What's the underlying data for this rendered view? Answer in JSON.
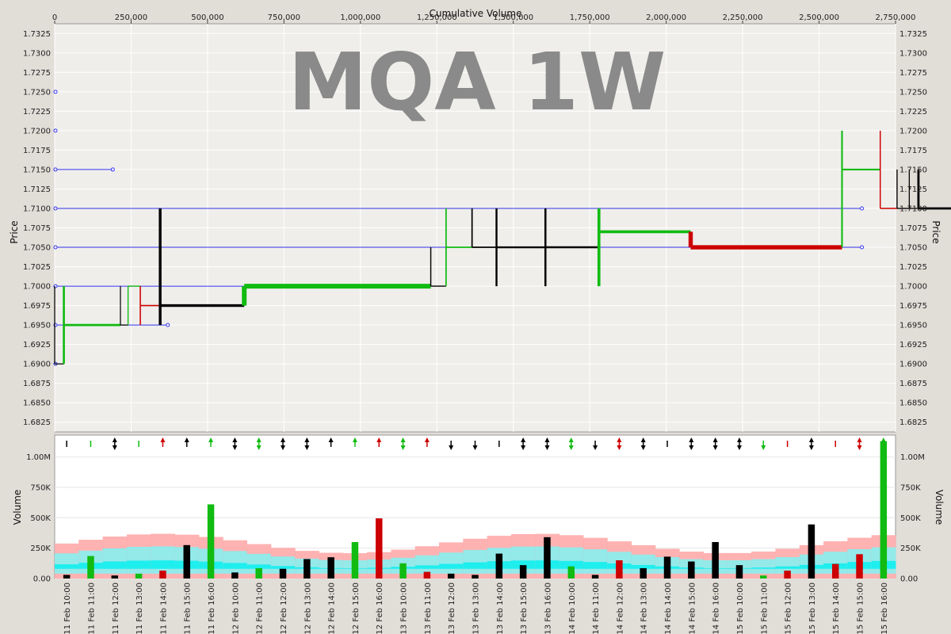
{
  "chart_data": {
    "type": "bar",
    "title": "",
    "watermark": "MQA 1W",
    "xlabel": "Cumulative Volume",
    "ylabel": "Price",
    "volume_label": "Volume",
    "x_range": [
      0,
      2750000
    ],
    "y_range": [
      1.68125,
      1.73375
    ],
    "vol_range": [
      0,
      1180000
    ],
    "x_ticks": [
      "0",
      "250,000",
      "500,000",
      "750,000",
      "1,000,000",
      "1,250,000",
      "1,500,000",
      "1,750,000",
      "2,000,000",
      "2,250,000",
      "2,500,000",
      "2,750,000"
    ],
    "y_ticks": [
      "1.6825",
      "1.6850",
      "1.6875",
      "1.6900",
      "1.6925",
      "1.6950",
      "1.6975",
      "1.7000",
      "1.7025",
      "1.7050",
      "1.7075",
      "1.7100",
      "1.7125",
      "1.7150",
      "1.7175",
      "1.7200",
      "1.7225",
      "1.7250",
      "1.7275",
      "1.7300",
      "1.7325"
    ],
    "vol_ticks": [
      "0.00",
      "250K",
      "500K",
      "750K",
      "1.00M"
    ],
    "colors": {
      "up": "#11bb11",
      "down": "#cc0000",
      "flat": "#000000",
      "level": "#3333ee",
      "band_outer": "#ffaaaa",
      "band_mid": "#88eeee",
      "band_inner": "#11eeee",
      "plot_bg": "#efeeeb",
      "grid": "#ffffff"
    },
    "levels": [
      {
        "price": 1.725,
        "x0": 0,
        "x1": 0
      },
      {
        "price": 1.72,
        "x0": 0,
        "x1": 0
      },
      {
        "price": 1.715,
        "x0": 0,
        "x1": 190000
      },
      {
        "price": 1.71,
        "x0": 0,
        "x1": 2640000
      },
      {
        "price": 1.705,
        "x0": 0,
        "x1": 2640000
      },
      {
        "price": 1.7,
        "x0": 0,
        "x1": 1020000
      },
      {
        "price": 1.695,
        "x0": 0,
        "x1": 370000
      },
      {
        "price": 1.69,
        "x0": 0,
        "x1": 0
      }
    ],
    "categories": [
      "11 Feb 10:00",
      "11 Feb 11:00",
      "11 Feb 12:00",
      "11 Feb 13:00",
      "11 Feb 14:00",
      "11 Feb 15:00",
      "11 Feb 16:00",
      "12 Feb 10:00",
      "12 Feb 11:00",
      "12 Feb 12:00",
      "12 Feb 13:00",
      "12 Feb 14:00",
      "12 Feb 15:00",
      "12 Feb 16:00",
      "13 Feb 10:00",
      "13 Feb 11:00",
      "13 Feb 12:00",
      "13 Feb 13:00",
      "13 Feb 14:00",
      "13 Feb 15:00",
      "13 Feb 16:00",
      "14 Feb 10:00",
      "14 Feb 11:00",
      "14 Feb 12:00",
      "14 Feb 13:00",
      "14 Feb 14:00",
      "14 Feb 15:00",
      "14 Feb 16:00",
      "15 Feb 10:00",
      "15 Feb 11:00",
      "15 Feb 12:00",
      "15 Feb 13:00",
      "15 Feb 14:00",
      "15 Feb 15:00",
      "15 Feb 16:00"
    ],
    "bars": [
      {
        "high": 1.7,
        "low": 1.69,
        "open": 1.69,
        "close": 1.69,
        "volume": 30000,
        "dir": "flat",
        "arrow": "none"
      },
      {
        "high": 1.7,
        "low": 1.69,
        "open": 1.69,
        "close": 1.695,
        "volume": 185000,
        "dir": "up",
        "arrow": "none"
      },
      {
        "high": 1.7,
        "low": 1.695,
        "open": 1.7,
        "close": 1.695,
        "volume": 25000,
        "dir": "flat",
        "arrow": "both"
      },
      {
        "high": 1.7,
        "low": 1.695,
        "open": 1.695,
        "close": 1.7,
        "volume": 40000,
        "dir": "up",
        "arrow": "none"
      },
      {
        "high": 1.7,
        "low": 1.695,
        "open": 1.7,
        "close": 1.6975,
        "volume": 65000,
        "dir": "down",
        "arrow": "up"
      },
      {
        "high": 1.71,
        "low": 1.695,
        "open": 1.6975,
        "close": 1.6975,
        "volume": 275000,
        "dir": "flat",
        "arrow": "up"
      },
      {
        "high": 1.7,
        "low": 1.6975,
        "open": 1.6975,
        "close": 1.7,
        "volume": 610000,
        "dir": "up",
        "arrow": "up"
      },
      {
        "high": 1.705,
        "low": 1.7,
        "open": 1.7,
        "close": 1.7,
        "volume": 50000,
        "dir": "flat",
        "arrow": "both"
      },
      {
        "high": 1.71,
        "low": 1.7,
        "open": 1.7,
        "close": 1.705,
        "volume": 85000,
        "dir": "up",
        "arrow": "both"
      },
      {
        "high": 1.71,
        "low": 1.705,
        "open": 1.705,
        "close": 1.705,
        "volume": 80000,
        "dir": "flat",
        "arrow": "both"
      },
      {
        "high": 1.71,
        "low": 1.7,
        "open": 1.705,
        "close": 1.705,
        "volume": 160000,
        "dir": "flat",
        "arrow": "both"
      },
      {
        "high": 1.71,
        "low": 1.7,
        "open": 1.705,
        "close": 1.705,
        "volume": 175000,
        "dir": "flat",
        "arrow": "up"
      },
      {
        "high": 1.71,
        "low": 1.7,
        "open": 1.705,
        "close": 1.707,
        "volume": 300000,
        "dir": "up",
        "arrow": "up"
      },
      {
        "high": 1.707,
        "low": 1.705,
        "open": 1.707,
        "close": 1.705,
        "volume": 495000,
        "dir": "down",
        "arrow": "up"
      },
      {
        "high": 1.72,
        "low": 1.705,
        "open": 1.705,
        "close": 1.715,
        "volume": 125000,
        "dir": "up",
        "arrow": "both"
      },
      {
        "high": 1.72,
        "low": 1.71,
        "open": 1.715,
        "close": 1.71,
        "volume": 55000,
        "dir": "down",
        "arrow": "up"
      },
      {
        "high": 1.715,
        "low": 1.71,
        "open": 1.71,
        "close": 1.71,
        "volume": 40000,
        "dir": "flat",
        "arrow": "down"
      },
      {
        "high": 1.715,
        "low": 1.71,
        "open": 1.71,
        "close": 1.71,
        "volume": 30000,
        "dir": "flat",
        "arrow": "down"
      },
      {
        "high": 1.715,
        "low": 1.71,
        "open": 1.71,
        "close": 1.71,
        "volume": 205000,
        "dir": "flat",
        "arrow": "none"
      },
      {
        "high": 1.71,
        "low": 1.705,
        "open": 1.71,
        "close": 1.71,
        "volume": 110000,
        "dir": "flat",
        "arrow": "both"
      },
      {
        "high": 1.71,
        "low": 1.71,
        "open": 1.71,
        "close": 1.71,
        "volume": 340000,
        "dir": "flat",
        "arrow": "both"
      },
      {
        "high": 1.717,
        "low": 1.7,
        "open": 1.712,
        "close": 1.712,
        "volume": 100000,
        "dir": "up",
        "arrow": "both"
      },
      {
        "high": 1.715,
        "low": 1.71,
        "open": 1.712,
        "close": 1.712,
        "volume": 30000,
        "dir": "flat",
        "arrow": "down"
      },
      {
        "high": 1.715,
        "low": 1.7075,
        "open": 1.71,
        "close": 1.71,
        "volume": 150000,
        "dir": "down",
        "arrow": "both"
      },
      {
        "high": 1.71,
        "low": 1.705,
        "open": 1.71,
        "close": 1.71,
        "volume": 85000,
        "dir": "flat",
        "arrow": "both"
      },
      {
        "high": 1.71,
        "low": 1.705,
        "open": 1.71,
        "close": 1.71,
        "volume": 180000,
        "dir": "flat",
        "arrow": "none"
      },
      {
        "high": 1.717,
        "low": 1.705,
        "open": 1.71,
        "close": 1.71,
        "volume": 140000,
        "dir": "flat",
        "arrow": "both"
      },
      {
        "high": 1.71,
        "low": 1.71,
        "open": 1.71,
        "close": 1.71,
        "volume": 300000,
        "dir": "flat",
        "arrow": "both"
      },
      {
        "high": 1.725,
        "low": 1.705,
        "open": 1.71,
        "close": 1.71,
        "volume": 110000,
        "dir": "flat",
        "arrow": "both"
      },
      {
        "high": 1.715,
        "low": 1.71,
        "open": 1.715,
        "close": 1.715,
        "volume": 25000,
        "dir": "up",
        "arrow": "down"
      },
      {
        "high": 1.715,
        "low": 1.71,
        "open": 1.71,
        "close": 1.71,
        "volume": 65000,
        "dir": "down",
        "arrow": "none"
      },
      {
        "high": 1.715,
        "low": 1.705,
        "open": 1.71,
        "close": 1.71,
        "volume": 445000,
        "dir": "flat",
        "arrow": "both"
      },
      {
        "high": 1.71,
        "low": 1.7,
        "open": 1.702,
        "close": 1.702,
        "volume": 120000,
        "dir": "down",
        "arrow": "none"
      },
      {
        "high": 1.71,
        "low": 1.695,
        "open": 1.7,
        "close": 1.7,
        "volume": 200000,
        "dir": "down",
        "arrow": "both"
      },
      {
        "high": 1.705,
        "low": 1.7,
        "open": 1.705,
        "close": 1.705,
        "volume": 1130000,
        "dir": "up",
        "arrow": "both"
      }
    ],
    "grid": true
  }
}
